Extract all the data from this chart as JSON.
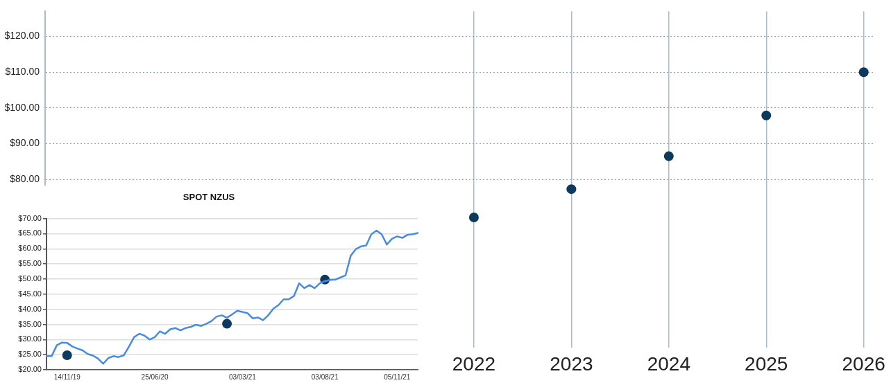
{
  "chart_data": [
    {
      "type": "scatter",
      "x": [
        2022,
        2023,
        2024,
        2025,
        2026
      ],
      "values": [
        69.4,
        77.3,
        86.5,
        97.9,
        110
      ],
      "color": "#0d3a5c",
      "marker": "circle",
      "xlim": [
        2017.6,
        2026.1
      ],
      "xticks": [
        2022,
        2023,
        2024,
        2025,
        2026
      ],
      "ylim": [
        33,
        127
      ],
      "yticks": [
        {
          "value": 80,
          "label": "$80.00"
        },
        {
          "value": 90,
          "label": "$90.00"
        },
        {
          "value": 100,
          "label": "$100.00"
        },
        {
          "value": 110,
          "label": "$110.00"
        },
        {
          "value": 120,
          "label": "$120.00"
        }
      ],
      "grid": true
    },
    {
      "type": "line",
      "title": "SPOT NZUS",
      "categories": [
        null,
        null,
        null,
        null,
        "14/11/19",
        null,
        null,
        null,
        null,
        null,
        null,
        null,
        null,
        null,
        null,
        null,
        null,
        null,
        null,
        null,
        null,
        "25/06/20",
        null,
        null,
        null,
        null,
        null,
        null,
        null,
        null,
        null,
        null,
        null,
        null,
        null,
        null,
        null,
        null,
        "03/03/21",
        null,
        null,
        null,
        null,
        null,
        null,
        null,
        null,
        null,
        null,
        null,
        null,
        null,
        null,
        null,
        "03/08/21",
        null,
        null,
        null,
        null,
        null,
        null,
        null,
        null,
        null,
        null,
        null,
        null,
        null,
        "05/11/21",
        null,
        null,
        null,
        null
      ],
      "series": [
        {
          "type": "line",
          "color": "#4a8be0",
          "marker": "none",
          "values": [
            24.5,
            24.5,
            28.1,
            29,
            28.9,
            27.7,
            27,
            26.4,
            25.2,
            24.7,
            23.7,
            22,
            23.9,
            24.5,
            24.2,
            24.8,
            27.7,
            30.8,
            31.9,
            31.3,
            30,
            30.8,
            32.7,
            31.9,
            33.4,
            33.8,
            33,
            33.8,
            34.2,
            34.9,
            34.5,
            35.2,
            36.1,
            37.6,
            38,
            37.2,
            38.3,
            39.5,
            39.1,
            38.7,
            37,
            37.3,
            36.4,
            38,
            40.2,
            41.4,
            43.3,
            43.3,
            44.4,
            48.6,
            47,
            48,
            47,
            48.6,
            49.3,
            49.7,
            49.8,
            50.5,
            51.2,
            57.7,
            59.9,
            60.8,
            61.1,
            64.8,
            66,
            64.8,
            61.4,
            63.3,
            64.1,
            63.6,
            64.6,
            64.8,
            65.2
          ]
        },
        {
          "type": "scatter",
          "color": "#0d3a5c",
          "marker": "circle",
          "values": [
            null,
            null,
            null,
            null,
            24.8,
            null,
            null,
            null,
            null,
            null,
            null,
            null,
            null,
            null,
            null,
            null,
            null,
            null,
            null,
            null,
            null,
            null,
            null,
            null,
            null,
            null,
            null,
            null,
            null,
            null,
            null,
            null,
            null,
            null,
            null,
            35.2,
            null,
            null,
            null,
            null,
            null,
            null,
            null,
            null,
            null,
            null,
            null,
            null,
            null,
            null,
            null,
            null,
            null,
            null,
            49.8,
            null,
            null,
            null,
            null,
            null,
            null,
            null,
            null,
            null,
            null,
            null,
            null,
            null,
            null,
            null,
            null,
            null,
            null
          ]
        }
      ],
      "ylim": [
        20,
        70
      ],
      "yticks": [
        {
          "value": 20,
          "label": "$20.00"
        },
        {
          "value": 25,
          "label": "$25.00"
        },
        {
          "value": 30,
          "label": "$30.00"
        },
        {
          "value": 35,
          "label": "$35.00"
        },
        {
          "value": 40,
          "label": "$40.00"
        },
        {
          "value": 45,
          "label": "$45.00"
        },
        {
          "value": 50,
          "label": "$50.00"
        },
        {
          "value": 55,
          "label": "$55.00"
        },
        {
          "value": 60,
          "label": "$60.00"
        },
        {
          "value": 65,
          "label": "$65.00"
        },
        {
          "value": 70,
          "label": "$70.00"
        }
      ],
      "grid": "y"
    }
  ]
}
